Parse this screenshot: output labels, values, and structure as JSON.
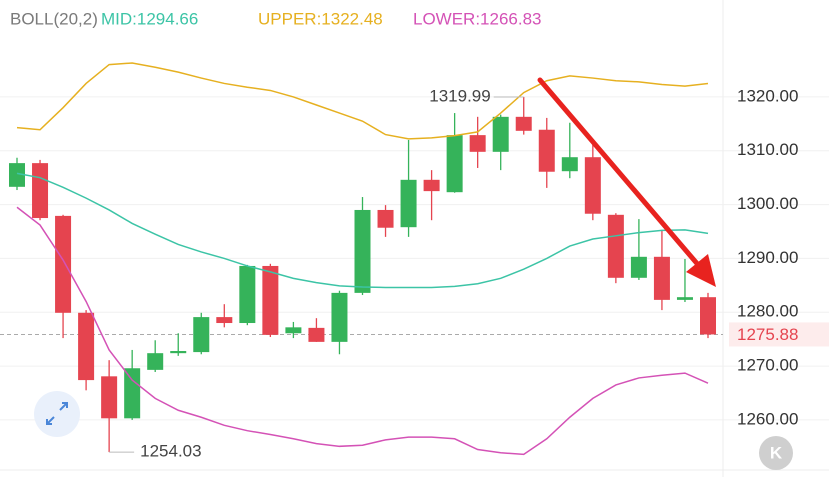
{
  "chart_data": {
    "type": "candlestick",
    "legend": [
      "BOLL(20,2)"
    ],
    "open": [
      1303.3,
      1307.7,
      1297.9,
      1279.9,
      1268.1,
      1260.3,
      1269.3,
      1272.4,
      1272.6,
      1279.1,
      1278.0,
      1288.6,
      1276.1,
      1277.1,
      1274.5,
      1283.6,
      1299.0,
      1295.8,
      1304.6,
      1302.3,
      1312.9,
      1309.8,
      1316.3,
      1313.9,
      1306.2,
      1308.8,
      1298.1,
      1286.4,
      1290.3,
      1282.3,
      1282.8
    ],
    "high": [
      1308.7,
      1308.3,
      1298.1,
      1280.4,
      1271.1,
      1273.0,
      1274.8,
      1276.1,
      1279.9,
      1281.5,
      1288.8,
      1289.0,
      1278.2,
      1278.9,
      1284.0,
      1301.4,
      1299.9,
      1312.0,
      1306.4,
      1317.0,
      1316.3,
      1316.7,
      1319.99,
      1316.1,
      1315.2,
      1311.1,
      1298.4,
      1297.3,
      1295.3,
      1289.9,
      1283.6
    ],
    "low": [
      1302.7,
      1297.1,
      1275.2,
      1265.5,
      1254.03,
      1260.0,
      1268.9,
      1271.9,
      1272.2,
      1277.2,
      1277.6,
      1275.4,
      1275.2,
      1274.5,
      1272.2,
      1283.2,
      1294.0,
      1294.0,
      1297.1,
      1302.2,
      1306.8,
      1306.4,
      1313.0,
      1303.1,
      1304.9,
      1297.1,
      1285.4,
      1286.0,
      1280.4,
      1281.9,
      1275.2
    ],
    "close": [
      1307.7,
      1297.5,
      1279.9,
      1267.4,
      1260.3,
      1269.6,
      1272.4,
      1272.8,
      1279.1,
      1278.0,
      1288.6,
      1275.8,
      1277.2,
      1274.5,
      1283.6,
      1299.0,
      1295.7,
      1304.6,
      1302.5,
      1312.9,
      1309.8,
      1316.3,
      1313.7,
      1306.1,
      1308.8,
      1298.3,
      1286.4,
      1290.3,
      1282.3,
      1282.8,
      1275.88
    ],
    "up_color": "#35b35a",
    "down_color": "#e5444f",
    "series": [
      {
        "label": "MID:1294.66",
        "color": "#3cc4a6",
        "values": [
          1305.8,
          1305.0,
          1303.2,
          1301.2,
          1299.0,
          1296.5,
          1294.5,
          1292.6,
          1291.2,
          1290.0,
          1288.6,
          1287.5,
          1286.3,
          1285.5,
          1284.9,
          1284.7,
          1284.6,
          1284.6,
          1284.6,
          1284.8,
          1285.3,
          1286.3,
          1288.0,
          1290.0,
          1292.3,
          1293.6,
          1294.2,
          1294.8,
          1295.2,
          1295.3,
          1294.66
        ]
      },
      {
        "label": "UPPER:1322.48",
        "color": "#e6b020",
        "values": [
          1314.3,
          1313.9,
          1318.0,
          1322.5,
          1326.0,
          1326.3,
          1325.5,
          1324.6,
          1323.5,
          1322.5,
          1321.8,
          1321.2,
          1320.0,
          1318.5,
          1317.0,
          1315.5,
          1313.0,
          1312.2,
          1312.4,
          1312.8,
          1313.5,
          1317.0,
          1320.8,
          1323.0,
          1323.9,
          1323.5,
          1323.0,
          1322.8,
          1322.3,
          1322.0,
          1322.48
        ]
      },
      {
        "label": "LOWER:1266.83",
        "color": "#d452b6",
        "values": [
          1299.5,
          1296.2,
          1289.7,
          1282.0,
          1273.0,
          1267.4,
          1264.0,
          1261.8,
          1260.5,
          1259.0,
          1258.0,
          1257.3,
          1256.5,
          1255.6,
          1255.1,
          1255.3,
          1256.3,
          1256.8,
          1256.8,
          1256.5,
          1254.5,
          1253.9,
          1253.6,
          1256.5,
          1260.5,
          1264.0,
          1266.5,
          1267.8,
          1268.3,
          1268.7,
          1266.83
        ]
      }
    ],
    "ylim": [
      1250.7,
      1338.0
    ],
    "yticks": [
      {
        "value": 1260,
        "label": "1260.00"
      },
      {
        "value": 1270,
        "label": "1270.00"
      },
      {
        "value": 1280,
        "label": "1280.00"
      },
      {
        "value": 1290,
        "label": "1290.00"
      },
      {
        "value": 1300,
        "label": "1300.00"
      },
      {
        "value": 1310,
        "label": "1310.00"
      },
      {
        "value": 1320,
        "label": "1320.00"
      }
    ],
    "last_price": 1275.88,
    "high_marker": 1319.99,
    "low_marker": 1254.03,
    "grid": true
  }
}
